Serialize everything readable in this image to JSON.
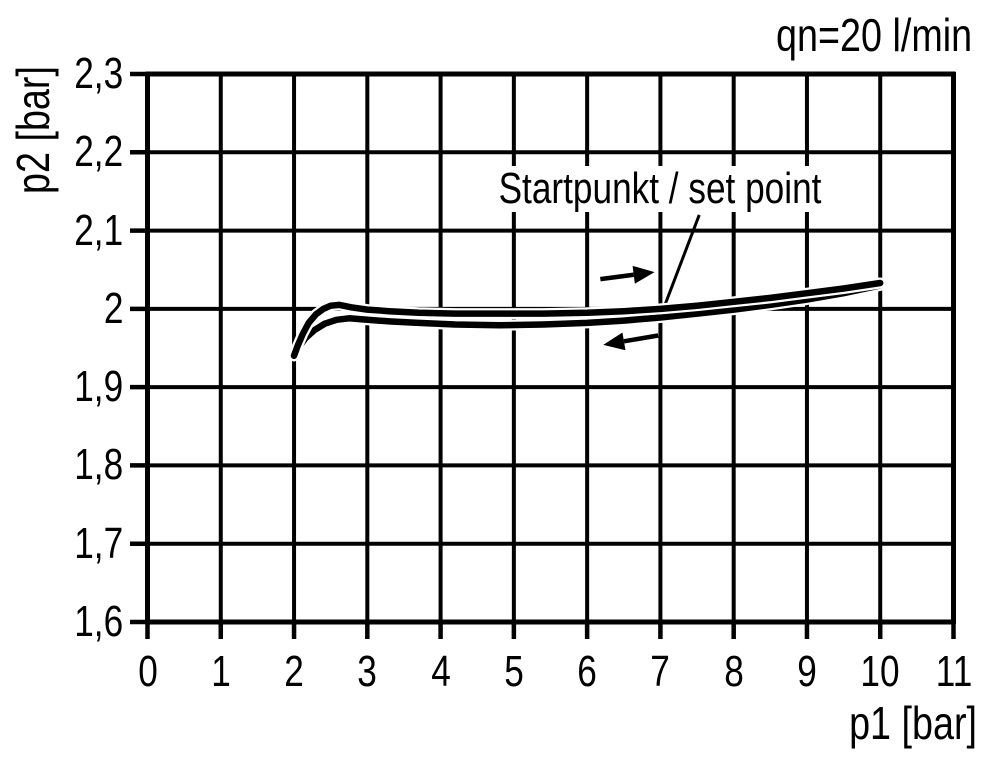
{
  "chart_data": {
    "type": "line",
    "title": "qn=20 l/min",
    "xlabel": "p1 [bar]",
    "ylabel": "p2 [bar]",
    "xlim": [
      0,
      11
    ],
    "ylim": [
      1.6,
      2.3
    ],
    "grid": true,
    "x_ticks": [
      {
        "label": "0",
        "value": 0
      },
      {
        "label": "1",
        "value": 1
      },
      {
        "label": "2",
        "value": 2
      },
      {
        "label": "3",
        "value": 3
      },
      {
        "label": "4",
        "value": 4
      },
      {
        "label": "5",
        "value": 5
      },
      {
        "label": "6",
        "value": 6
      },
      {
        "label": "7",
        "value": 7
      },
      {
        "label": "8",
        "value": 8
      },
      {
        "label": "9",
        "value": 9
      },
      {
        "label": "10",
        "value": 10
      },
      {
        "label": "11",
        "value": 11
      }
    ],
    "y_ticks": [
      {
        "label": "2,3",
        "value": 2.3
      },
      {
        "label": "2,2",
        "value": 2.2
      },
      {
        "label": "2,1",
        "value": 2.1
      },
      {
        "label": "2",
        "value": 2.0
      },
      {
        "label": "1,9",
        "value": 1.9
      },
      {
        "label": "1,8",
        "value": 1.8
      },
      {
        "label": "1,7",
        "value": 1.7
      },
      {
        "label": "1,6",
        "value": 1.6
      }
    ],
    "series": [
      {
        "name": "upper-curve-increasing-p1",
        "x": [
          2.0,
          2.05,
          2.12,
          2.2,
          2.3,
          2.4,
          2.5,
          2.62,
          2.78,
          3.0,
          3.3,
          3.7,
          4.2,
          4.8,
          5.4,
          6.0,
          6.5,
          7.0,
          7.5,
          8.0,
          8.5,
          9.0,
          9.5,
          10.0
        ],
        "y": [
          1.94,
          1.953,
          1.968,
          1.982,
          1.993,
          2.0,
          2.004,
          2.005,
          2.002,
          1.999,
          1.997,
          1.995,
          1.994,
          1.994,
          1.994,
          1.995,
          1.997,
          2.0,
          2.004,
          2.009,
          2.014,
          2.02,
          2.026,
          2.033
        ]
      },
      {
        "name": "lower-curve-decreasing-p1",
        "x": [
          2.0,
          2.07,
          2.16,
          2.28,
          2.42,
          2.58,
          2.75,
          3.0,
          3.3,
          3.7,
          4.2,
          4.8,
          5.4,
          6.0,
          6.5,
          7.0,
          7.5,
          8.0,
          8.5,
          9.0,
          9.5,
          10.0
        ],
        "y": [
          1.94,
          1.952,
          1.963,
          1.973,
          1.981,
          1.986,
          1.988,
          1.986,
          1.984,
          1.982,
          1.98,
          1.979,
          1.98,
          1.982,
          1.985,
          1.989,
          1.994,
          1.999,
          2.005,
          2.012,
          2.02,
          2.03
        ]
      }
    ],
    "annotations": {
      "set_point": {
        "text": "Startpunkt / set point",
        "leader": {
          "from": [
            7.53,
            2.12
          ],
          "to": [
            7.07,
            2.007
          ]
        }
      },
      "arrows": [
        {
          "name": "direction-arrow-right",
          "tail": [
            6.18,
            2.038
          ],
          "tip": [
            6.92,
            2.047
          ]
        },
        {
          "name": "direction-arrow-left",
          "tail": [
            6.97,
            1.966
          ],
          "tip": [
            6.22,
            1.954
          ]
        }
      ]
    },
    "colors": {
      "line": "#000000",
      "grid": "#000000",
      "background": "#ffffff"
    }
  }
}
